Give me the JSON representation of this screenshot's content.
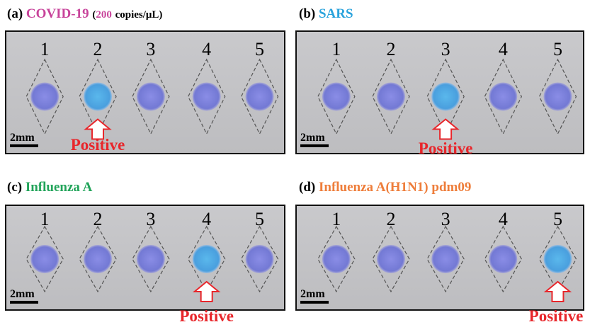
{
  "panels": [
    {
      "label": "(a)",
      "title": "COVID-19",
      "note_open": "(",
      "note_value": "200",
      "note_unit": "copies/μL)",
      "wells": [
        "1",
        "2",
        "3",
        "4",
        "5"
      ],
      "scale": "2mm",
      "marker": "Positive"
    },
    {
      "label": "(b)",
      "title": "SARS",
      "wells": [
        "1",
        "2",
        "3",
        "4",
        "5"
      ],
      "scale": "2mm",
      "marker": "Positive"
    },
    {
      "label": "(c)",
      "title": "Influenza A",
      "wells": [
        "1",
        "2",
        "3",
        "4",
        "5"
      ],
      "scale": "2mm",
      "marker": "Positive"
    },
    {
      "label": "(d)",
      "title": "Influenza A(H1N1) pdm09",
      "wells": [
        "1",
        "2",
        "3",
        "4",
        "5"
      ],
      "scale": "2mm",
      "marker": "Positive"
    }
  ]
}
